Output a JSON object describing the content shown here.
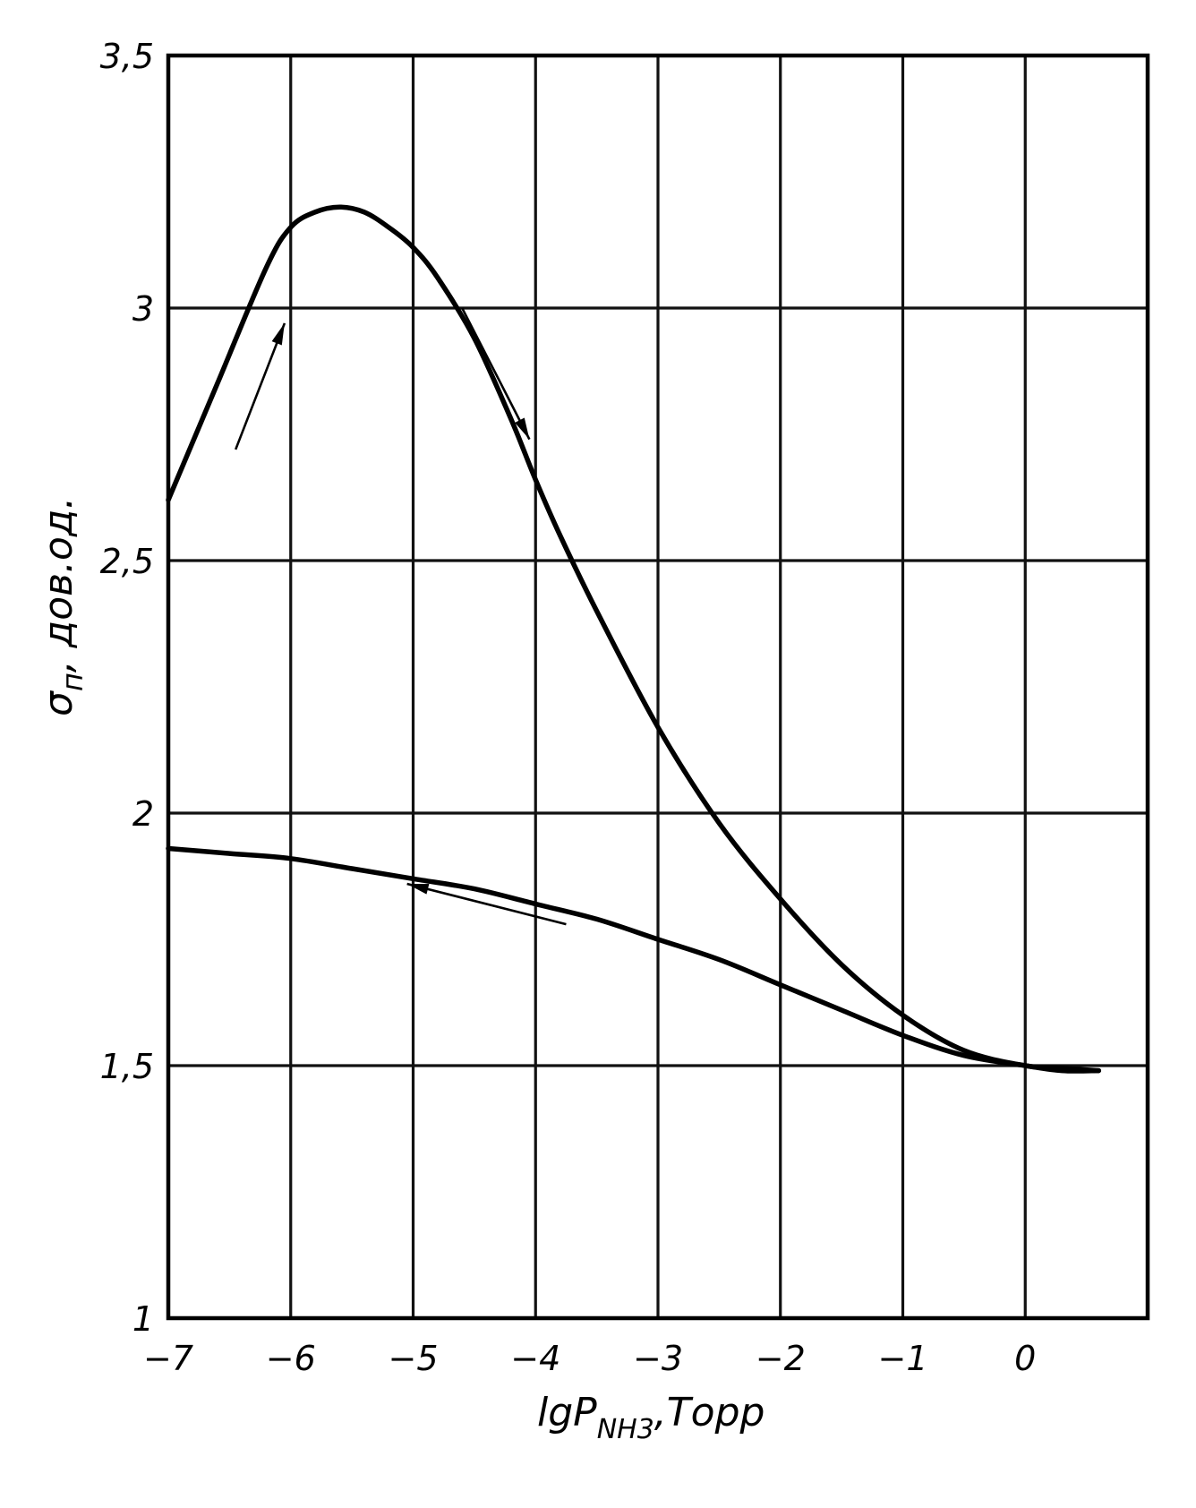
{
  "chart_data": {
    "type": "line",
    "xlabel": {
      "main": "lgP",
      "sub": "NH3",
      "tail": ",Торр"
    },
    "ylabel": {
      "main": "σ",
      "sub": "п",
      "tail": ", дов.од."
    },
    "xlim": [
      -7,
      1
    ],
    "ylim": [
      1,
      3.5
    ],
    "x_ticks": [
      -7,
      -6,
      -5,
      -4,
      -3,
      -2,
      -1,
      0
    ],
    "x_tick_labels": [
      "−7",
      "−6",
      "−5",
      "−4",
      "−3",
      "−2",
      "−1",
      "0"
    ],
    "y_ticks": [
      1,
      1.5,
      2,
      2.5,
      3,
      3.5
    ],
    "y_tick_labels": [
      "1",
      "1,5",
      "2",
      "2,5",
      "3",
      "3,5"
    ],
    "grid": true,
    "series": [
      {
        "direction": "increasing pressure",
        "x": [
          -7.0,
          -6.6,
          -6.2,
          -6.0,
          -5.8,
          -5.6,
          -5.4,
          -5.2,
          -5.0,
          -4.8,
          -4.5,
          -4.2,
          -4.0,
          -3.8,
          -3.5,
          -3.0,
          -2.5,
          -2.0,
          -1.5,
          -1.0,
          -0.5,
          0.0,
          0.3,
          0.6
        ],
        "y": [
          2.62,
          2.85,
          3.08,
          3.16,
          3.19,
          3.2,
          3.19,
          3.16,
          3.12,
          3.06,
          2.94,
          2.78,
          2.66,
          2.55,
          2.4,
          2.17,
          1.98,
          1.83,
          1.7,
          1.6,
          1.53,
          1.5,
          1.495,
          1.49
        ]
      },
      {
        "direction": "decreasing pressure",
        "x": [
          0.6,
          0.3,
          0.0,
          -0.5,
          -1.0,
          -1.5,
          -2.0,
          -2.5,
          -3.0,
          -3.5,
          -4.0,
          -4.5,
          -5.0,
          -5.5,
          -6.0,
          -6.5,
          -7.0
        ],
        "y": [
          1.49,
          1.49,
          1.5,
          1.52,
          1.56,
          1.61,
          1.66,
          1.71,
          1.75,
          1.79,
          1.82,
          1.85,
          1.87,
          1.89,
          1.91,
          1.92,
          1.93
        ]
      }
    ],
    "annotations": [
      {
        "kind": "arrow",
        "direction": "up-right",
        "near_x": -6.2,
        "near_y": 2.85
      },
      {
        "kind": "arrow",
        "direction": "down-right",
        "near_x": -4.2,
        "near_y": 2.88
      },
      {
        "kind": "arrow",
        "direction": "left",
        "near_x": -4.6,
        "near_y": 1.82
      }
    ]
  }
}
